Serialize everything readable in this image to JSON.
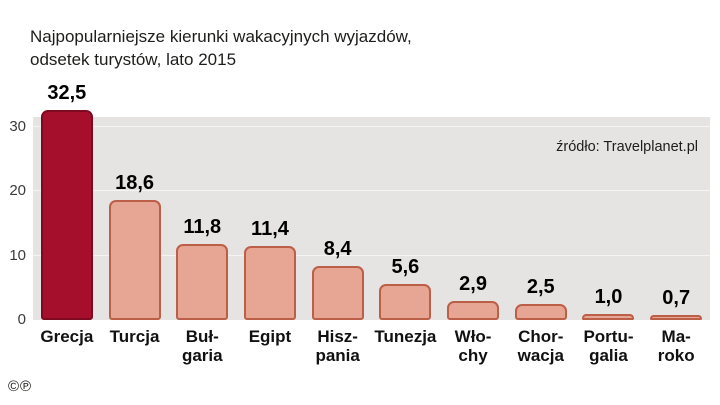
{
  "title": {
    "line1": "Najpopularniejsze kierunki wakacyjnych wyjazdów,",
    "line2": "odsetek turystów, lato 2015"
  },
  "source": "źródło: Travelplanet.pl",
  "footer_mark": "©℗",
  "chart_data": {
    "type": "bar",
    "title": "Najpopularniejsze kierunki wakacyjnych wyjazdów, odsetek turystów, lato 2015",
    "xlabel": "",
    "ylabel": "",
    "categories": [
      "Grecja",
      "Turcja",
      "Bułgaria",
      "Egipt",
      "Hiszpania",
      "Tunezja",
      "Włochy",
      "Chorwacja",
      "Portugalia",
      "Maroko"
    ],
    "category_display": [
      [
        "Grecja"
      ],
      [
        "Turcja"
      ],
      [
        "Buł-",
        "garia"
      ],
      [
        "Egipt"
      ],
      [
        "Hisz-",
        "pania"
      ],
      [
        "Tunezja"
      ],
      [
        "Wło-",
        "chy"
      ],
      [
        "Chor-",
        "wacja"
      ],
      [
        "Portu-",
        "galia"
      ],
      [
        "Ma-",
        "roko"
      ]
    ],
    "values": [
      32.5,
      18.6,
      11.8,
      11.4,
      8.4,
      5.6,
      2.9,
      2.5,
      1.0,
      0.7
    ],
    "value_labels": [
      "32,5",
      "18,6",
      "11,8",
      "11,4",
      "8,4",
      "5,6",
      "2,9",
      "2,5",
      "1,0",
      "0,7"
    ],
    "y_ticks": [
      0,
      10,
      20,
      30
    ],
    "ylim": [
      0,
      30
    ],
    "grid": true,
    "legend": false,
    "highlight_index": 0,
    "colors": {
      "bar_fill": "#e7a694",
      "bar_border": "#bc5f49",
      "highlight_fill": "#a60f2c",
      "highlight_border": "#7e0a21",
      "panel_bg": "#e6e4e3"
    }
  }
}
